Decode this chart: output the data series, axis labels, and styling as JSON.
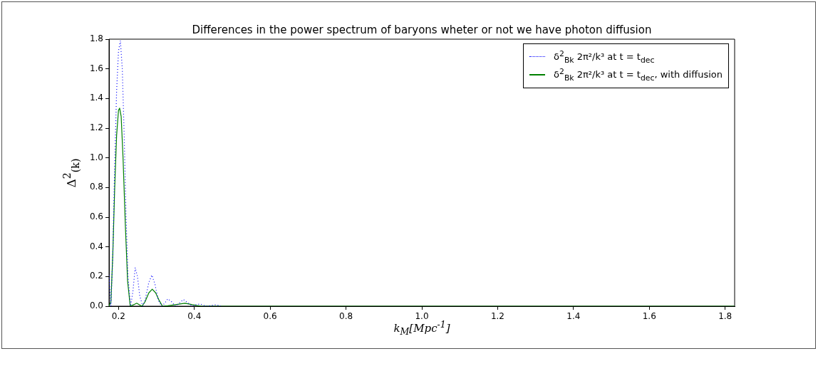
{
  "chart_data": {
    "type": "line",
    "title": "Differences in the power spectrum of baryons wheter or not we have photon diffusion",
    "xlabel": "k$_{M}$[Mpc$^{-1}$]",
    "ylabel": "Δ$^{2}$$_{(k)}$",
    "legend": "top right",
    "xlim": [
      0.175,
      1.825
    ],
    "xticks": [
      0.2,
      0.4,
      0.6,
      0.8,
      {
        "value": 1,
        "label": "1.0"
      },
      1.2,
      1.4,
      1.6,
      1.8
    ],
    "ylim": [
      0,
      1.8
    ],
    "yticks": [
      {
        "value": 0,
        "label": "0.0"
      },
      0.2,
      0.4,
      0.6,
      0.8,
      {
        "value": 1,
        "label": "1.0"
      },
      1.2,
      1.4,
      1.6,
      1.8
    ],
    "series": [
      {
        "name": "δ$^{2}$$_{Bk}$ 2π²/k³ at t = t$_{dec}$",
        "color": "#0000ff",
        "line_style": "dotted",
        "x": [
          0.175,
          0.18,
          0.185,
          0.19,
          0.195,
          0.2,
          0.205,
          0.21,
          0.215,
          0.22,
          0.225,
          0.232,
          0.238,
          0.244,
          0.25,
          0.256,
          0.264,
          0.27,
          0.28,
          0.288,
          0.296,
          0.305,
          0.314,
          0.322,
          0.33,
          0.34,
          0.35,
          0.36,
          0.371,
          0.382,
          0.395,
          0.405,
          0.416,
          0.43,
          0.445,
          0.457,
          0.47
        ],
        "values": [
          0.21,
          0,
          0.35,
          0.95,
          1.45,
          1.72,
          1.79,
          1.6,
          1.15,
          0.6,
          0.2,
          0,
          0.1,
          0.26,
          0.2,
          0.07,
          0,
          0.04,
          0.16,
          0.21,
          0.15,
          0.04,
          0,
          0.02,
          0.05,
          0.03,
          0,
          0.02,
          0.045,
          0.025,
          0,
          0.01,
          0.015,
          0,
          0.005,
          0.01,
          0
        ]
      },
      {
        "name": "δ$^{2}$$_{Bk}$ 2π²/k³ at t = t$_{dec}$, with diffusion",
        "color": "#008000",
        "line_style": "solid",
        "x": [
          0.175,
          0.18,
          0.185,
          0.19,
          0.195,
          0.2,
          0.203,
          0.207,
          0.212,
          0.218,
          0.224,
          0.231,
          0.24,
          0.248,
          0.255,
          0.262,
          0.27,
          0.28,
          0.289,
          0.298,
          0.307,
          0.316,
          0.33,
          0.35,
          0.376,
          0.395,
          0.418,
          1.825
        ],
        "values": [
          0,
          0.03,
          0.35,
          0.8,
          1.15,
          1.32,
          1.335,
          1.28,
          1,
          0.55,
          0.17,
          0,
          0.01,
          0.02,
          0.01,
          0,
          0.03,
          0.09,
          0.115,
          0.09,
          0.04,
          0,
          0.003,
          0.01,
          0.02,
          0.01,
          0,
          0
        ]
      }
    ]
  }
}
